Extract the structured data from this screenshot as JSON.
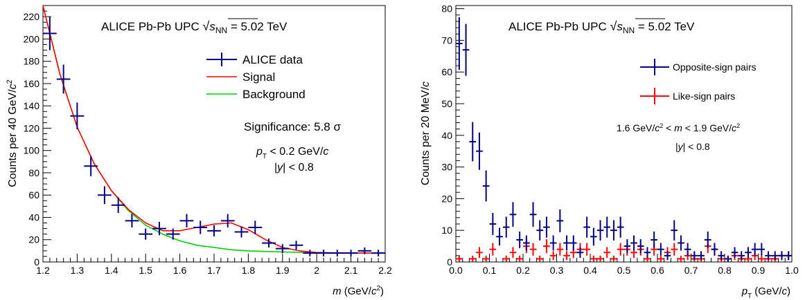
{
  "chart_data": [
    {
      "type": "scatter",
      "panel": "left",
      "banner": {
        "prefix": "ALICE Pb-Pb UPC ",
        "root_sym": "s",
        "root_sub": "NN",
        "suffix": " = 5.02 TeV"
      },
      "xlabel": {
        "var": "m",
        "pre": " (GeV/",
        "unit": "c",
        "sup": "2",
        "post": ")"
      },
      "ylabel": {
        "pre": "Counts per 40 GeV/",
        "unit": "c",
        "sup": "2"
      },
      "xlim": [
        1.2,
        2.2
      ],
      "ylim": [
        0,
        230
      ],
      "x_ticks": [
        "1.2",
        "1.3",
        "1.4",
        "1.5",
        "1.6",
        "1.7",
        "1.8",
        "1.9",
        "2",
        "2.1",
        "2.2"
      ],
      "y_ticks": [
        "0",
        "20",
        "40",
        "60",
        "80",
        "100",
        "120",
        "140",
        "160",
        "180",
        "200",
        "220"
      ],
      "series": [
        {
          "name": "ALICE data",
          "color": "#000080",
          "x": [
            1.22,
            1.26,
            1.3,
            1.34,
            1.38,
            1.42,
            1.46,
            1.5,
            1.54,
            1.58,
            1.62,
            1.66,
            1.7,
            1.74,
            1.78,
            1.82,
            1.86,
            1.9,
            1.94,
            1.98,
            2.02,
            2.06,
            2.1,
            2.14,
            2.18
          ],
          "y": [
            205,
            164,
            131,
            86,
            60,
            51,
            37,
            25,
            30,
            25,
            37,
            31,
            28,
            37,
            27,
            31,
            17,
            12,
            15,
            8,
            8,
            8,
            8,
            10,
            8
          ],
          "err": [
            15,
            13,
            12,
            9,
            8,
            7,
            6,
            5,
            6,
            5,
            6,
            6,
            5,
            6,
            5,
            6,
            4,
            4,
            4,
            3,
            3,
            3,
            3,
            3,
            3
          ]
        },
        {
          "name": "Signal",
          "color": "#ff0000",
          "x": [
            1.2,
            1.25,
            1.3,
            1.35,
            1.4,
            1.45,
            1.5,
            1.55,
            1.6,
            1.65,
            1.7,
            1.75,
            1.8,
            1.85,
            1.9,
            1.95,
            2.0,
            2.05,
            2.1,
            2.15,
            2.2
          ],
          "y": [
            232,
            168,
            121,
            88,
            64,
            47,
            35,
            28,
            28,
            31,
            34,
            35,
            29,
            20,
            13,
            10,
            8.5,
            8.2,
            8.1,
            8.0,
            8.0
          ]
        },
        {
          "name": "Background",
          "color": "#00cc00",
          "x": [
            1.2,
            1.25,
            1.3,
            1.35,
            1.4,
            1.45,
            1.5,
            1.55,
            1.6,
            1.65,
            1.7,
            1.75,
            1.8,
            1.85,
            1.9,
            1.95,
            2.0,
            2.05,
            2.1,
            2.15,
            2.2
          ],
          "y": [
            232,
            168,
            121,
            88,
            64,
            46,
            33,
            25,
            19,
            15,
            13,
            11,
            10,
            9.5,
            9,
            8.7,
            8.4,
            8.2,
            8.1,
            8.0,
            8.0
          ]
        }
      ],
      "annotations": {
        "significance": "Significance: 5.8 σ",
        "pt_cut": {
          "sym": "p",
          "sub": "T",
          "text": " < 0.2 GeV/",
          "unit": "c"
        },
        "y_cut": {
          "pre": "|",
          "sym": "y",
          "post": "| < 0.8"
        }
      }
    },
    {
      "type": "scatter",
      "panel": "right",
      "banner": {
        "prefix": "ALICE Pb-Pb UPC ",
        "root_sym": "s",
        "root_sub": "NN",
        "suffix": " = 5.02 TeV"
      },
      "xlabel": {
        "var": "p",
        "sub": "T",
        "pre": " (GeV/",
        "unit": "c",
        "post": ")"
      },
      "ylabel": {
        "pre": "Counts per 20 MeV/",
        "unit": "c"
      },
      "xlim": [
        0.0,
        1.0
      ],
      "ylim": [
        0,
        81
      ],
      "x_ticks": [
        "0.0",
        "0.1",
        "0.2",
        "0.3",
        "0.4",
        "0.5",
        "0.6",
        "0.7",
        "0.8",
        "0.9",
        "1.0"
      ],
      "y_ticks": [
        "0",
        "10",
        "20",
        "30",
        "40",
        "50",
        "60",
        "70",
        "80"
      ],
      "series": [
        {
          "name": "Opposite-sign pairs",
          "color": "#000080",
          "x": [
            0.01,
            0.03,
            0.05,
            0.07,
            0.09,
            0.11,
            0.13,
            0.15,
            0.17,
            0.19,
            0.21,
            0.23,
            0.25,
            0.27,
            0.29,
            0.31,
            0.33,
            0.35,
            0.37,
            0.39,
            0.41,
            0.43,
            0.45,
            0.47,
            0.49,
            0.51,
            0.53,
            0.55,
            0.57,
            0.59,
            0.61,
            0.63,
            0.65,
            0.67,
            0.69,
            0.71,
            0.73,
            0.75,
            0.77,
            0.79,
            0.81,
            0.83,
            0.85,
            0.87,
            0.89,
            0.91,
            0.93,
            0.95,
            0.97,
            0.99
          ],
          "y": [
            69,
            67,
            38,
            35,
            24,
            12,
            8,
            11,
            15,
            7,
            6,
            15,
            10,
            11,
            6,
            13,
            6,
            6,
            3,
            11,
            8,
            10,
            11,
            10,
            11,
            5,
            6,
            5,
            3,
            7,
            4,
            2,
            10,
            6,
            4,
            2,
            2,
            7,
            4,
            2,
            1,
            3,
            2,
            3,
            4,
            4,
            2,
            2,
            2,
            2
          ],
          "err": [
            8.3,
            8.2,
            6.2,
            5.9,
            4.9,
            3.5,
            2.8,
            3.3,
            3.9,
            2.6,
            2.4,
            3.9,
            3.2,
            3.3,
            2.4,
            3.6,
            2.4,
            2.4,
            1.7,
            3.3,
            2.8,
            3.2,
            3.3,
            3.2,
            3.3,
            2.2,
            2.4,
            2.2,
            1.7,
            2.6,
            2.0,
            1.4,
            3.2,
            2.4,
            2.0,
            1.4,
            1.4,
            2.6,
            2.0,
            1.4,
            1.0,
            1.7,
            1.4,
            1.7,
            2.0,
            2.0,
            1.4,
            1.4,
            1.4,
            1.4
          ]
        },
        {
          "name": "Like-sign pairs",
          "color": "#ff0000",
          "x": [
            0.01,
            0.05,
            0.07,
            0.09,
            0.11,
            0.15,
            0.17,
            0.19,
            0.21,
            0.23,
            0.25,
            0.27,
            0.29,
            0.31,
            0.33,
            0.35,
            0.37,
            0.39,
            0.41,
            0.43,
            0.45,
            0.47,
            0.49,
            0.51,
            0.53,
            0.55,
            0.57,
            0.59,
            0.61,
            0.63,
            0.65,
            0.67,
            0.69,
            0.71,
            0.73,
            0.75,
            0.77,
            0.79,
            0.81,
            0.83,
            0.85,
            0.87,
            0.89,
            0.91,
            0.93,
            0.95,
            0.97,
            0.99
          ],
          "y": [
            1,
            1,
            3,
            1,
            4,
            1,
            3,
            1,
            5,
            4,
            1,
            5,
            2,
            4,
            2,
            3,
            4,
            4,
            1,
            1,
            3,
            1,
            4,
            4,
            3,
            4,
            1,
            4,
            1,
            3,
            4,
            1,
            2,
            1,
            1,
            5,
            4,
            1,
            1,
            2,
            1,
            1,
            2,
            1,
            1,
            1,
            2,
            2
          ],
          "err": [
            1.0,
            1.0,
            1.7,
            1.0,
            2.0,
            1.0,
            1.7,
            1.0,
            2.2,
            2.0,
            1.0,
            2.2,
            1.4,
            2.0,
            1.4,
            1.7,
            2.0,
            2.0,
            1.0,
            1.0,
            1.7,
            1.0,
            2.0,
            2.0,
            1.7,
            2.0,
            1.0,
            2.0,
            1.0,
            1.7,
            2.0,
            1.0,
            1.4,
            1.0,
            1.0,
            2.2,
            2.0,
            1.0,
            1.0,
            1.4,
            1.0,
            1.0,
            1.4,
            1.0,
            1.0,
            1.0,
            1.4,
            1.4
          ]
        }
      ],
      "annotations": {
        "mass_window": {
          "a": "1.6 GeV/",
          "unit1": "c",
          "sup1": "2",
          "b": " < ",
          "sym": "m",
          "c": " < 1.9 GeV/",
          "unit2": "c",
          "sup2": "2"
        },
        "y_cut": {
          "pre": "|",
          "sym": "y",
          "post": "| < 0.8"
        }
      }
    }
  ]
}
